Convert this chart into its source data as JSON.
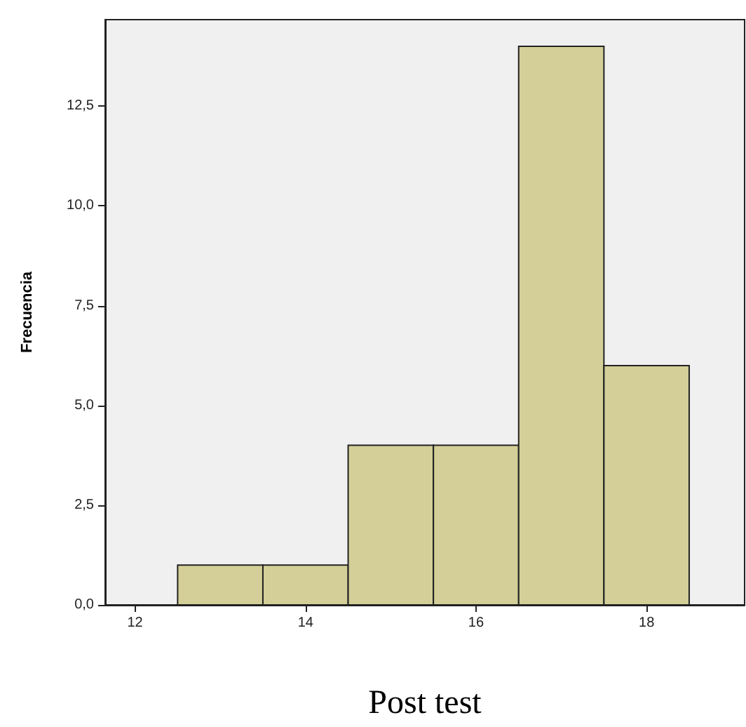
{
  "chart_data": {
    "type": "histogram",
    "xlabel": "Post test",
    "ylabel": "Frecuencia",
    "bins": [
      12.5,
      13.5,
      14.5,
      15.5,
      16.5,
      17.5,
      18.5
    ],
    "values": [
      1,
      1,
      4,
      4,
      14,
      6
    ],
    "color": "#d4cf98",
    "xlim": [
      11.65,
      19.15
    ],
    "xticks": [
      12,
      14,
      16,
      18
    ],
    "ylim": [
      0,
      14.67
    ],
    "yticks": [
      {
        "value": 0,
        "label": "0,0"
      },
      {
        "value": 2.5,
        "label": "2,5"
      },
      {
        "value": 5,
        "label": "5,0"
      },
      {
        "value": 7.5,
        "label": "7,5"
      },
      {
        "value": 10,
        "label": "10,0"
      },
      {
        "value": 12.5,
        "label": "12,5"
      }
    ],
    "grid": false
  }
}
